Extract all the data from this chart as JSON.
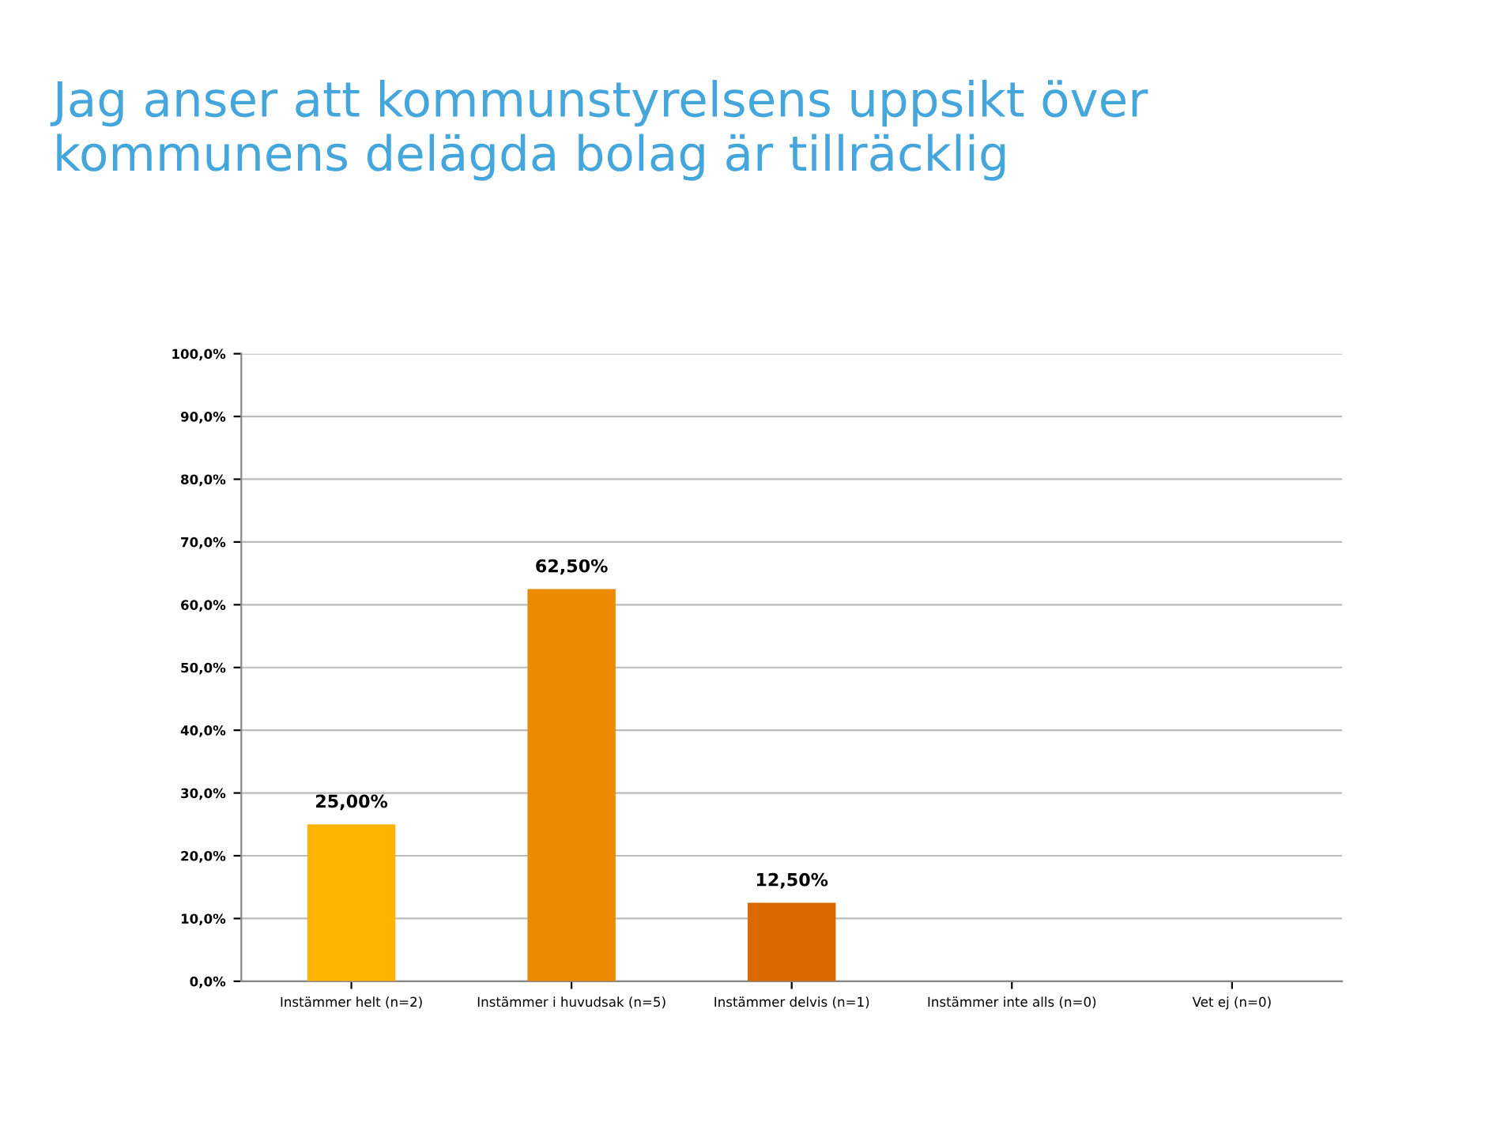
{
  "chart_data": {
    "type": "bar",
    "title": "Jag anser att kommunstyrelsens uppsikt över\nkommunens delägda bolag är tillräcklig",
    "categories": [
      "Instämmer helt (n=2)",
      "Instämmer i huvudsak (n=5)",
      "Instämmer delvis (n=1)",
      "Instämmer inte alls (n=0)",
      "Vet ej (n=0)"
    ],
    "values": [
      25,
      62.5,
      12.5,
      0,
      0
    ],
    "colors": [
      "#ffb300",
      "#ec8a00",
      "#dc6900",
      "#dc6900",
      "#dc6900"
    ],
    "value_labels": [
      "25,00%",
      "62,50%",
      "12,50%",
      null,
      null
    ],
    "ylim": [
      0,
      100
    ],
    "yticks": [
      {
        "value": 0,
        "label": "0,0%"
      },
      {
        "value": 10,
        "label": "10,0%"
      },
      {
        "value": 20,
        "label": "20,0%"
      },
      {
        "value": 30,
        "label": "30,0%"
      },
      {
        "value": 40,
        "label": "40,0%"
      },
      {
        "value": 50,
        "label": "50,0%"
      },
      {
        "value": 60,
        "label": "60,0%"
      },
      {
        "value": 70,
        "label": "70,0%"
      },
      {
        "value": 80,
        "label": "80,0%"
      },
      {
        "value": 90,
        "label": "90,0%"
      },
      {
        "value": 100,
        "label": "100,0%"
      }
    ],
    "grid": "y"
  }
}
